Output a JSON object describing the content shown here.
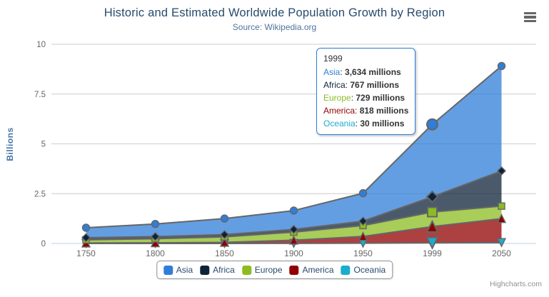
{
  "chart_data": {
    "type": "area",
    "stacking": "normal",
    "title": "Historic and Estimated Worldwide Population Growth by Region",
    "subtitle": "Source: Wikipedia.org",
    "xlabel": "",
    "ylabel": "Billions",
    "ylim": [
      0,
      10
    ],
    "yticks": [
      0,
      2.5,
      5,
      7.5,
      10
    ],
    "grid": "horizontal",
    "legend_position": "bottom",
    "categories": [
      "1750",
      "1800",
      "1850",
      "1900",
      "1950",
      "1999",
      "2050"
    ],
    "values_unit": "millions",
    "series": [
      {
        "name": "Asia",
        "color": "#2f7ed8",
        "marker": "circle",
        "values": [
          502,
          635,
          809,
          947,
          1402,
          3634,
          5268
        ]
      },
      {
        "name": "Africa",
        "color": "#0d233a",
        "marker": "diamond",
        "values": [
          106,
          107,
          111,
          133,
          221,
          767,
          1766
        ]
      },
      {
        "name": "Europe",
        "color": "#8bbc21",
        "marker": "square",
        "values": [
          163,
          203,
          276,
          408,
          547,
          729,
          628
        ]
      },
      {
        "name": "America",
        "color": "#910000",
        "marker": "triangle",
        "values": [
          18,
          31,
          54,
          156,
          339,
          818,
          1201
        ]
      },
      {
        "name": "Oceania",
        "color": "#1aadce",
        "marker": "triangle-down",
        "values": [
          2,
          2,
          2,
          6,
          13,
          30,
          46
        ]
      }
    ],
    "fill_opacity": 0.75,
    "line_color": "#666666",
    "hovered_category_index": 5,
    "tooltip": {
      "header": "1999",
      "rows": [
        {
          "name": "Asia",
          "value": "3,634 millions"
        },
        {
          "name": "Africa",
          "value": "767 millions"
        },
        {
          "name": "Europe",
          "value": "729 millions"
        },
        {
          "name": "America",
          "value": "818 millions"
        },
        {
          "name": "Oceania",
          "value": "30 millions"
        }
      ]
    }
  },
  "credits": {
    "label": "Highcharts.com"
  }
}
